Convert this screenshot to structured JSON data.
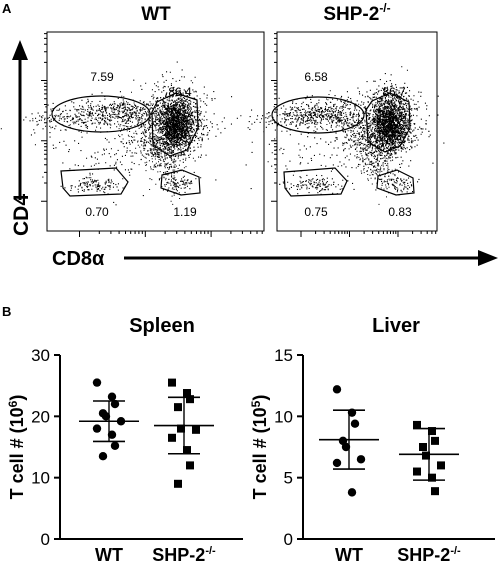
{
  "panel_a": {
    "label": "A",
    "x_axis_label": "CD8α",
    "y_axis_label": "CD4",
    "plots": [
      {
        "title": "WT",
        "gates": [
          "7.59",
          "86.4",
          "0.70",
          "1.19"
        ]
      },
      {
        "title": "SHP-2",
        "title_sup": "-/-",
        "gates": [
          "6.58",
          "86.7",
          "0.75",
          "0.83"
        ]
      }
    ]
  },
  "panel_b": {
    "label": "B"
  },
  "chart_data": [
    {
      "type": "scatter",
      "title": "Spleen",
      "ylabel_main": "T cell # (10",
      "ylabel_exp": "6",
      "ylabel_close": ")",
      "ylim": [
        0,
        30
      ],
      "yticks": [
        "0",
        "10",
        "20",
        "30"
      ],
      "categories": [
        "WT",
        "SHP-2"
      ],
      "category_sup": [
        "",
        "-/-"
      ],
      "series": [
        {
          "marker": "circle",
          "values": [
            25.5,
            23.2,
            22.0,
            20.5,
            20.0,
            19.2,
            18.0,
            17.0,
            15.2,
            13.5
          ],
          "mean": 19.2,
          "sd": 3.3
        },
        {
          "marker": "square",
          "values": [
            25.5,
            23.8,
            22.8,
            21.5,
            18.0,
            17.8,
            16.5,
            14.5,
            12.0,
            9.0
          ],
          "mean": 18.5,
          "sd": 4.6
        }
      ]
    },
    {
      "type": "scatter",
      "title": "Liver",
      "ylabel_main": "T cell # (10",
      "ylabel_exp": "5",
      "ylabel_close": ")",
      "ylim": [
        0,
        15
      ],
      "yticks": [
        "0",
        "5",
        "10",
        "15"
      ],
      "categories": [
        "WT",
        "SHP-2"
      ],
      "category_sup": [
        "",
        "-/-"
      ],
      "series": [
        {
          "marker": "circle",
          "values": [
            12.2,
            10.3,
            9.4,
            8.0,
            7.5,
            6.5,
            6.2,
            3.8
          ],
          "mean": 8.1,
          "sd": 2.4
        },
        {
          "marker": "square",
          "values": [
            9.3,
            8.8,
            8.0,
            7.5,
            6.8,
            6.0,
            5.5,
            5.0,
            3.9
          ],
          "mean": 6.9,
          "sd": 2.1
        }
      ]
    }
  ]
}
